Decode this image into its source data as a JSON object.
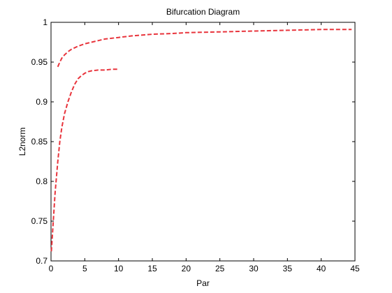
{
  "chart_data": {
    "type": "line",
    "title": "Bifurcation Diagram",
    "xlabel": "Par",
    "ylabel": "L2norm",
    "xlim": [
      0,
      45
    ],
    "ylim": [
      0.7,
      1
    ],
    "xticks": [
      0,
      5,
      10,
      15,
      20,
      25,
      30,
      35,
      40,
      45
    ],
    "yticks": [
      0.7,
      0.75,
      0.8,
      0.85,
      0.9,
      0.95,
      1
    ],
    "grid": false,
    "line_style": "dashed",
    "series": [
      {
        "color": "#e8343c",
        "x": [
          1.0,
          1.3,
          1.6,
          2.0,
          2.5,
          3,
          4,
          5,
          6,
          7,
          8,
          10,
          12,
          15,
          18,
          20,
          25,
          30,
          35,
          40,
          44.5
        ],
        "y": [
          0.944,
          0.95,
          0.955,
          0.959,
          0.963,
          0.966,
          0.97,
          0.973,
          0.975,
          0.977,
          0.979,
          0.981,
          0.983,
          0.985,
          0.986,
          0.987,
          0.988,
          0.989,
          0.99,
          0.991,
          0.991
        ]
      },
      {
        "color": "#e8343c",
        "x": [
          0.05,
          0.3,
          0.6,
          1.0,
          1.3,
          1.6,
          2.0,
          2.5,
          3.0,
          3.5,
          4.0,
          4.5,
          5.0,
          5.5,
          6,
          7,
          8,
          9,
          10
        ],
        "y": [
          0.712,
          0.745,
          0.785,
          0.825,
          0.85,
          0.868,
          0.885,
          0.9,
          0.912,
          0.922,
          0.929,
          0.933,
          0.936,
          0.938,
          0.939,
          0.94,
          0.94,
          0.941,
          0.941
        ]
      }
    ]
  }
}
